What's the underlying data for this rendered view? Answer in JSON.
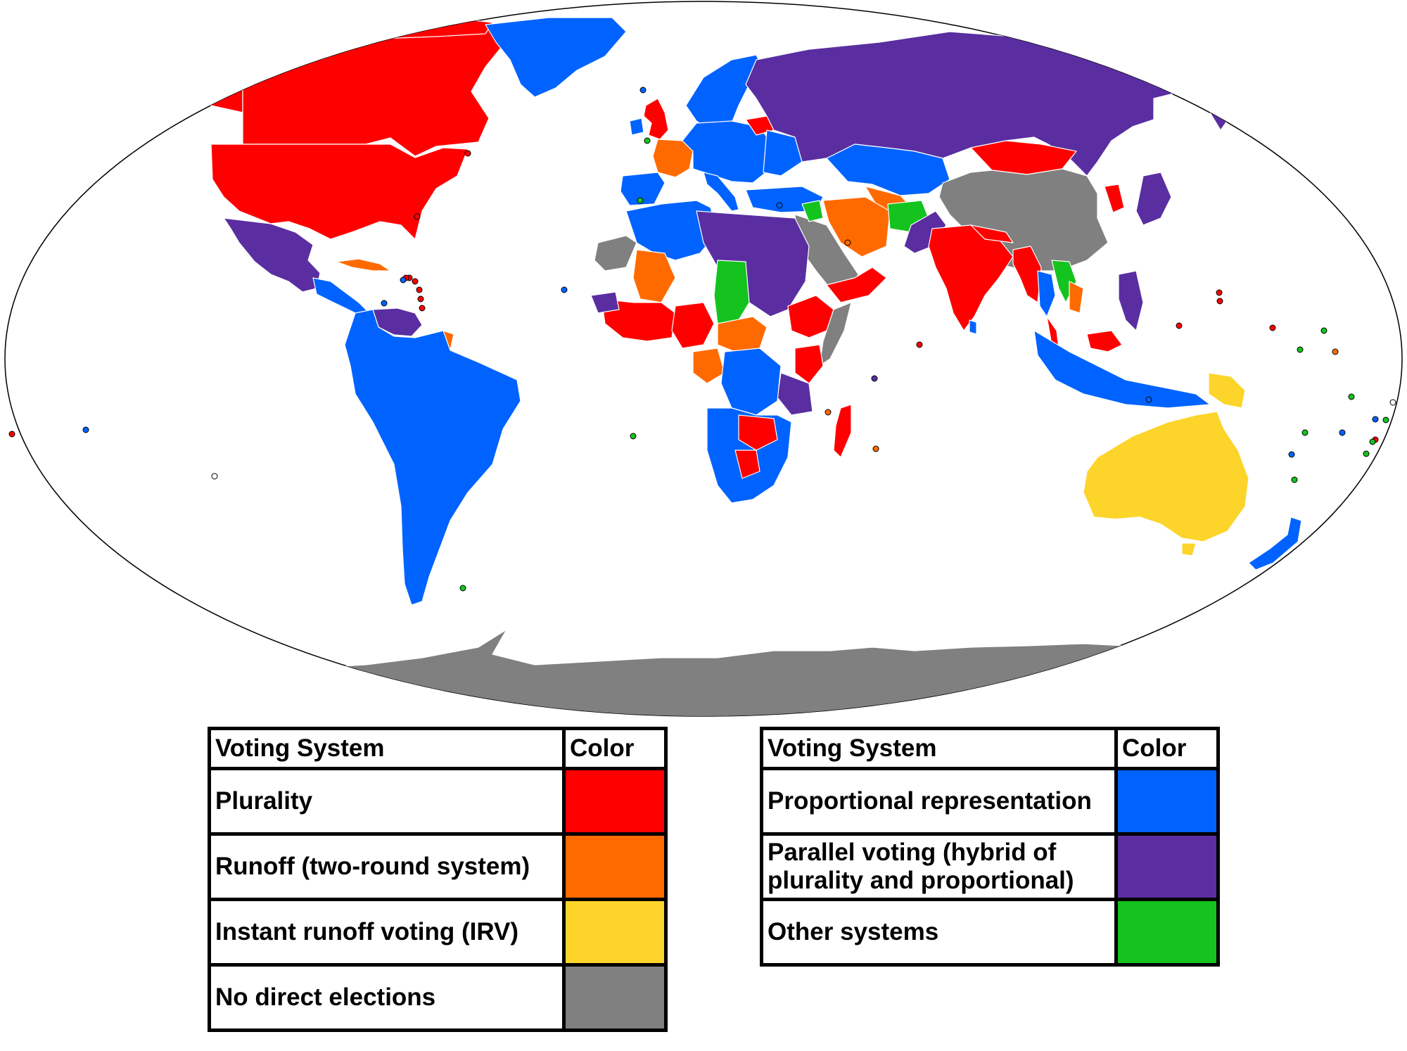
{
  "map": {
    "colors": {
      "plurality": "#ff0000",
      "runoff": "#ff6a00",
      "irv": "#fdd42a",
      "none": "#808080",
      "proportional": "#0063ff",
      "parallel": "#5a2ea1",
      "other": "#14c31e",
      "ocean": "#ffffff",
      "border": "#ffffff"
    }
  },
  "legend_left": {
    "header": {
      "system": "Voting System",
      "color": "Color"
    },
    "rows": [
      {
        "label": "Plurality",
        "color": "#ff0000"
      },
      {
        "label": "Runoff (two-round system)",
        "color": "#ff6a00"
      },
      {
        "label": "Instant runoff voting (IRV)",
        "color": "#fdd42a"
      },
      {
        "label": "No direct elections",
        "color": "#808080"
      }
    ]
  },
  "legend_right": {
    "header": {
      "system": "Voting System",
      "color": "Color"
    },
    "rows": [
      {
        "label": "Proportional representation",
        "color": "#0063ff"
      },
      {
        "label": "Parallel voting (hybrid of plurality and proportional)",
        "color": "#5a2ea1"
      },
      {
        "label": "Other systems",
        "color": "#14c31e"
      }
    ]
  }
}
